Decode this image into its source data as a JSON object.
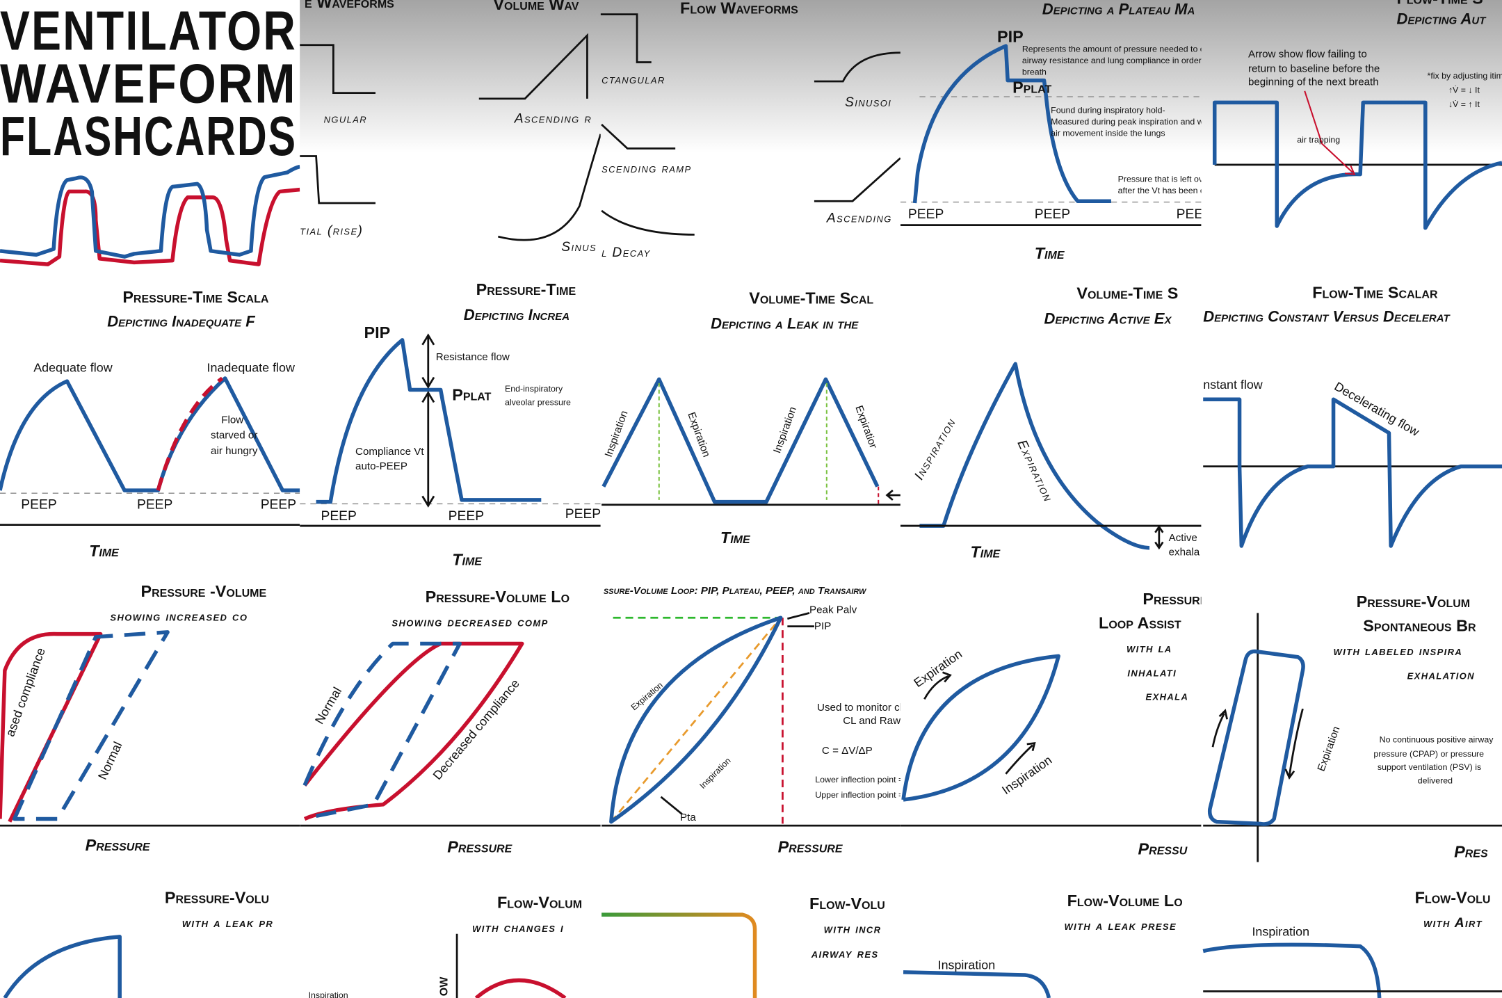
{
  "cards": [
    {
      "texts": [
        "VENTILATOR",
        "WAVEFORM",
        "FLASHCARDS"
      ]
    },
    {
      "texts": [
        "e Waveforms",
        "ngular",
        "tial (rise)"
      ]
    },
    {
      "texts": [
        "Volume Wav",
        "Ascending r",
        "Sinus"
      ]
    },
    {
      "texts": [
        "Flow Waveforms",
        "ctangular",
        "scending ramp",
        "l Decay",
        "Sinusoi",
        "Ascending"
      ]
    },
    {
      "texts": [
        "Depicting a Plateau Ma",
        "PIP",
        "Represents the amount of pressure needed to overcome",
        "airway resistance and lung compliance in order to deliver a",
        "breath",
        "Pplat",
        "Found during inspiratory hold-",
        "Measured during peak inspiration and while there",
        "air movement inside the lungs",
        "Pressure that is left over in",
        "after the Vt has been delive",
        "PEEP",
        "PEEP",
        "PEEP",
        "Time"
      ]
    },
    {
      "texts": [
        "Flow-Time S",
        "Depicting Aut",
        "Arrow show flow failing to",
        "return to baseline before the",
        "beginning of the next breath",
        "air trapping",
        "*fix by adjusting itim",
        "↑V̇ = ↓ It",
        "↓V̇ = ↑ It"
      ]
    },
    {
      "texts": [
        "Pressure-Time Scala",
        "Depicting Inadequate F",
        "Adequate flow",
        "Inadequate flow",
        "Flow",
        "starved or",
        "air hungry",
        "PEEP",
        "PEEP",
        "PEEP",
        "Time"
      ]
    },
    {
      "texts": [
        "Pressure-Time",
        "Depicting Increa",
        "PIP",
        "Resistance flow",
        "Pplat",
        "End-inspiratory",
        "alveolar pressure",
        "Compliance Vt",
        "auto-PEEP",
        "PEEP",
        "PEEP",
        "PEEP",
        "Time"
      ]
    },
    {
      "texts": [
        "Volume-Time Scal",
        "Depicting a Leak in the",
        "Inspiration",
        "Expiration",
        "Inspiration",
        "Expiration",
        "Time"
      ]
    },
    {
      "texts": [
        "Volume-Time S",
        "Depicting Active Ex",
        "Inspiration",
        "Expiration",
        "Active",
        "exhala",
        "Time"
      ]
    },
    {
      "texts": [
        "Flow-Time Scalar",
        "Depicting Constant Versus Decelerat",
        "nstant flow",
        "Decelerating flow"
      ]
    },
    {
      "texts": [
        "Pressure -Volume",
        "showing increased co",
        "ased compliance",
        "Normal",
        "Pressure"
      ]
    },
    {
      "texts": [
        "Pressure-Volume Lo",
        "showing decreased comp",
        "Normal",
        "Decreased compliance",
        "Pressure"
      ]
    },
    {
      "texts": [
        "ssure-Volume Loop: PIP, Plateau, PEEP, and Transairw",
        "Peak Palv",
        "PIP",
        "Expiration",
        "Inspiration",
        "Pta",
        "Used to monitor chang",
        "CL and Raw",
        "C = ΔV/ΔP",
        "Lower inflection point = wh",
        "Upper inflection point = wh",
        "Pressure"
      ]
    },
    {
      "texts": [
        "Pressure-",
        "Loop Assist",
        "with la",
        "inhalati",
        "exhala",
        "Expiration",
        "Inspiration",
        "Pressu"
      ]
    },
    {
      "texts": [
        "Pressure-Volum",
        "Spontaneous Br",
        "with labeled inspira",
        "exhalation",
        "No continuous positive airway",
        "pressure (CPAP) or pressure",
        "support ventilation (PSV) is",
        "delivered",
        "Expiration",
        "Pres"
      ]
    },
    {
      "texts": [
        "Pressure-Volu",
        "with a leak pr"
      ]
    },
    {
      "texts": [
        "Flow-Volum",
        "with changes i",
        "Inspiration",
        "ow"
      ]
    },
    {
      "texts": [
        "Flow-Volu",
        "with incr",
        "airway res"
      ]
    },
    {
      "texts": [
        "Flow-Volume Lo",
        "with a leak prese",
        "Inspiration"
      ]
    },
    {
      "texts": [
        "Flow-Volu",
        "with Airt",
        "Inspiration"
      ]
    }
  ]
}
